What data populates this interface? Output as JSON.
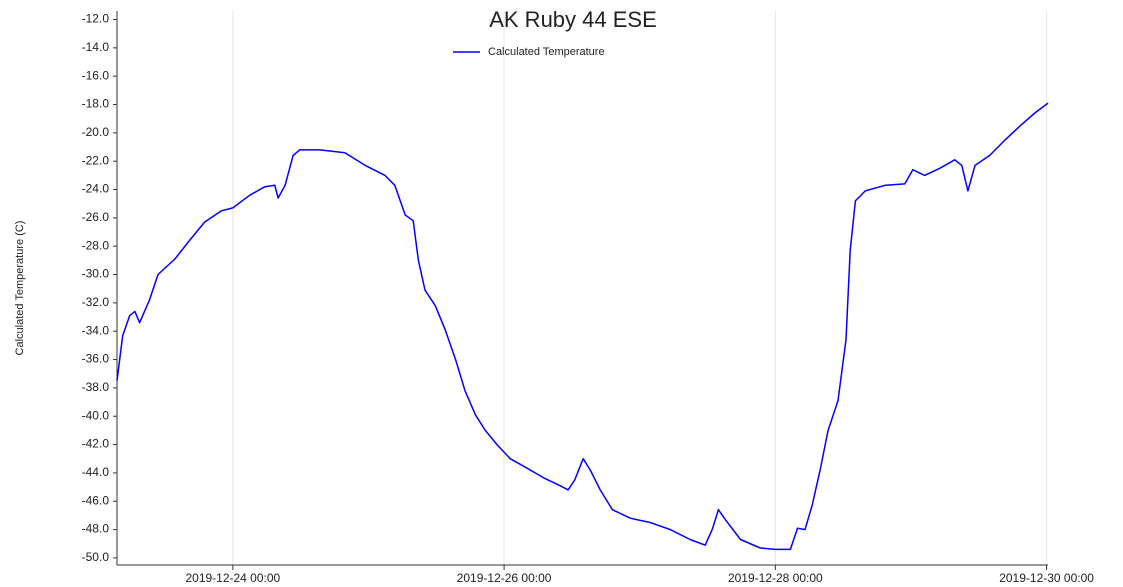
{
  "chart_data": {
    "type": "line",
    "title": "AK Ruby 44 ESE",
    "y_label": "Calculated Temperature (C)",
    "x": [
      "2019-12-23 03:30",
      "2019-12-23 04:30",
      "2019-12-23 05:45",
      "2019-12-23 06:40",
      "2019-12-23 07:30",
      "2019-12-23 09:15",
      "2019-12-23 10:45",
      "2019-12-23 13:45",
      "2019-12-23 16:20",
      "2019-12-23 19:00",
      "2019-12-23 22:00",
      "2019-12-24 00:00",
      "2019-12-24 03:00",
      "2019-12-24 05:40",
      "2019-12-24 07:25",
      "2019-12-24 08:00",
      "2019-12-24 09:15",
      "2019-12-24 10:40",
      "2019-12-24 11:50",
      "2019-12-24 15:25",
      "2019-12-24 19:50",
      "2019-12-24 23:25",
      "2019-12-25 02:55",
      "2019-12-25 04:40",
      "2019-12-25 06:30",
      "2019-12-25 07:55",
      "2019-12-25 08:50",
      "2019-12-25 10:00",
      "2019-12-25 11:50",
      "2019-12-25 13:35",
      "2019-12-25 15:25",
      "2019-12-25 17:05",
      "2019-12-25 18:55",
      "2019-12-25 20:40",
      "2019-12-25 22:45",
      "2019-12-26 01:05",
      "2019-12-26 03:45",
      "2019-12-26 07:15",
      "2019-12-26 09:55",
      "2019-12-26 11:20",
      "2019-12-26 12:30",
      "2019-12-26 14:00",
      "2019-12-26 15:15",
      "2019-12-26 17:00",
      "2019-12-26 19:10",
      "2019-12-26 22:20",
      "2019-12-27 01:50",
      "2019-12-27 05:25",
      "2019-12-27 08:55",
      "2019-12-27 11:35",
      "2019-12-27 12:50",
      "2019-12-27 13:55",
      "2019-12-27 15:10",
      "2019-12-27 17:50",
      "2019-12-27 21:20",
      "2019-12-28 00:00",
      "2019-12-28 02:40",
      "2019-12-28 03:55",
      "2019-12-28 05:15",
      "2019-12-28 06:30",
      "2019-12-28 07:55",
      "2019-12-28 09:20",
      "2019-12-28 11:05",
      "2019-12-28 12:30",
      "2019-12-28 13:15",
      "2019-12-28 14:10",
      "2019-12-28 15:55",
      "2019-12-28 19:25",
      "2019-12-28 22:55",
      "2019-12-29 00:20",
      "2019-12-29 02:25",
      "2019-12-29 05:05",
      "2019-12-29 07:45",
      "2019-12-29 09:00",
      "2019-12-29 10:05",
      "2019-12-29 11:20",
      "2019-12-29 13:55",
      "2019-12-29 16:40",
      "2019-12-29 19:20",
      "2019-12-29 21:55",
      "2019-12-30 00:15"
    ],
    "series": [
      {
        "name": "Calculated Temperature",
        "color": "#0000ff",
        "values": [
          -37.5,
          -34.3,
          -32.9,
          -32.6,
          -33.4,
          -31.8,
          -30.0,
          -28.9,
          -27.6,
          -26.3,
          -25.5,
          -25.3,
          -24.4,
          -23.8,
          -23.7,
          -24.6,
          -23.7,
          -21.6,
          -21.2,
          -21.2,
          -21.4,
          -22.3,
          -23.0,
          -23.7,
          -25.8,
          -26.2,
          -29.0,
          -31.1,
          -32.2,
          -33.9,
          -36.0,
          -38.2,
          -39.9,
          -41.0,
          -42.0,
          -43.0,
          -43.6,
          -44.4,
          -44.9,
          -45.2,
          -44.5,
          -43.0,
          -43.8,
          -45.2,
          -46.6,
          -47.2,
          -47.5,
          -48.0,
          -48.7,
          -49.1,
          -48.0,
          -46.6,
          -47.3,
          -48.7,
          -49.3,
          -49.4,
          -49.4,
          -47.9,
          -48.0,
          -46.3,
          -43.8,
          -41.0,
          -38.9,
          -34.6,
          -28.3,
          -24.8,
          -24.1,
          -23.7,
          -23.6,
          -22.6,
          -23.0,
          -22.5,
          -21.9,
          -22.3,
          -24.1,
          -22.3,
          -21.6,
          -20.5,
          -19.5,
          -18.6,
          -17.9
        ]
      }
    ],
    "xlim": [
      "2019-12-23 03:30",
      "2019-12-30 00:15"
    ],
    "xticks": [
      "2019-12-24 00:00",
      "2019-12-26 00:00",
      "2019-12-28 00:00",
      "2019-12-30 00:00"
    ],
    "ylim": [
      -50.5,
      -11.4
    ],
    "yticks": [
      {
        "value": -50,
        "label": "-50.0"
      },
      {
        "value": -48,
        "label": "-48.0"
      },
      {
        "value": -46,
        "label": "-46.0"
      },
      {
        "value": -44,
        "label": "-44.0"
      },
      {
        "value": -42,
        "label": "-42.0"
      },
      {
        "value": -40,
        "label": "-40.0"
      },
      {
        "value": -38,
        "label": "-38.0"
      },
      {
        "value": -36,
        "label": "-36.0"
      },
      {
        "value": -34,
        "label": "-34.0"
      },
      {
        "value": -32,
        "label": "-32.0"
      },
      {
        "value": -30,
        "label": "-30.0"
      },
      {
        "value": -28,
        "label": "-28.0"
      },
      {
        "value": -26,
        "label": "-26.0"
      },
      {
        "value": -24,
        "label": "-24.0"
      },
      {
        "value": -22,
        "label": "-22.0"
      },
      {
        "value": -20,
        "label": "-20.0"
      },
      {
        "value": -18,
        "label": "-18.0"
      },
      {
        "value": -16,
        "label": "-16.0"
      },
      {
        "value": -14,
        "label": "-14.0"
      },
      {
        "value": -12,
        "label": "-12.0"
      }
    ],
    "grid": "x",
    "legend": "top"
  }
}
